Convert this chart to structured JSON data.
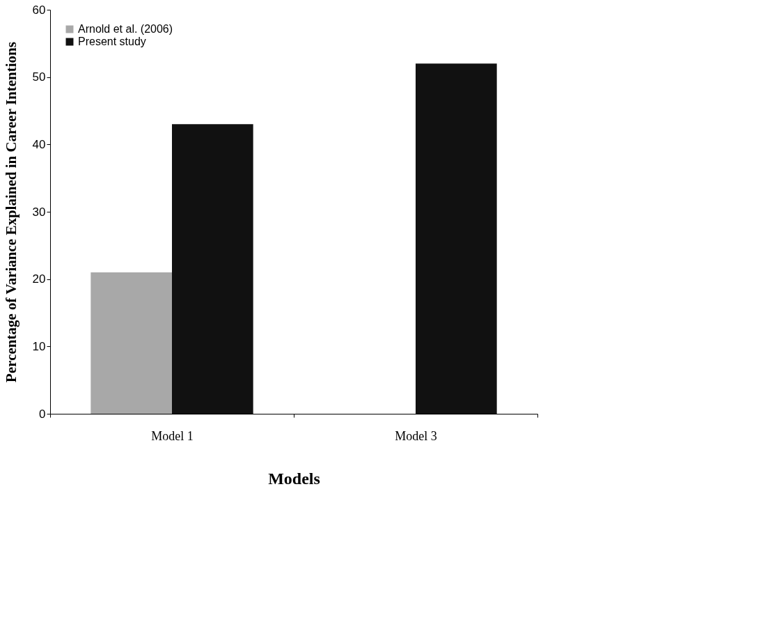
{
  "chart_data": {
    "type": "bar",
    "xlabel": "Models",
    "ylabel": "Percentage of Variance Explained in Career Intentions",
    "categories": [
      "Model 1",
      "Model 3"
    ],
    "series": [
      {
        "name": "Arnold et al. (2006)",
        "color": "#a8a8a8",
        "values": [
          21,
          null
        ]
      },
      {
        "name": "Present study",
        "color": "#111111",
        "values": [
          43,
          52
        ]
      }
    ],
    "ylim": [
      0,
      60
    ],
    "yticks": [
      0,
      10,
      20,
      30,
      40,
      50,
      60
    ],
    "grid": false,
    "legend": "top left"
  }
}
